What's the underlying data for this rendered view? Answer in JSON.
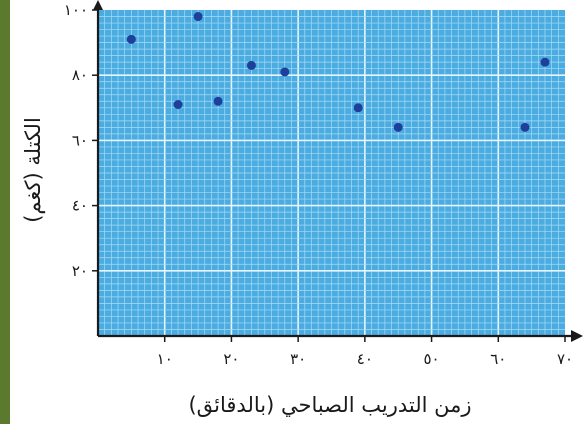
{
  "chart_data": {
    "type": "scatter",
    "title": "",
    "xlabel": "زمن التدريب الصباحي (بالدقائق)",
    "ylabel": "الكتلة (كغم)",
    "xlim": [
      0,
      70
    ],
    "ylim": [
      0,
      100
    ],
    "x_ticks": [
      10,
      20,
      30,
      40,
      50,
      60,
      70
    ],
    "x_tick_labels": [
      "١٠",
      "٢٠",
      "٣٠",
      "٤٠",
      "٥٠",
      "٦٠",
      "٧٠"
    ],
    "y_ticks": [
      20,
      40,
      60,
      80,
      100
    ],
    "y_tick_labels": [
      "٢٠",
      "٤٠",
      "٦٠",
      "٨٠",
      "١٠٠"
    ],
    "grid": true,
    "points": [
      {
        "x": 5,
        "y": 91
      },
      {
        "x": 12,
        "y": 71
      },
      {
        "x": 15,
        "y": 98
      },
      {
        "x": 18,
        "y": 72
      },
      {
        "x": 23,
        "y": 83
      },
      {
        "x": 28,
        "y": 81
      },
      {
        "x": 39,
        "y": 70
      },
      {
        "x": 45,
        "y": 64
      },
      {
        "x": 64,
        "y": 64
      },
      {
        "x": 67,
        "y": 84
      }
    ],
    "colors": {
      "background": "#4aace0",
      "grid_minor": "#a9dbf5",
      "grid_major": "#e9f6fd",
      "point": "#1e3f9a",
      "axis": "#1a1a1a"
    }
  }
}
